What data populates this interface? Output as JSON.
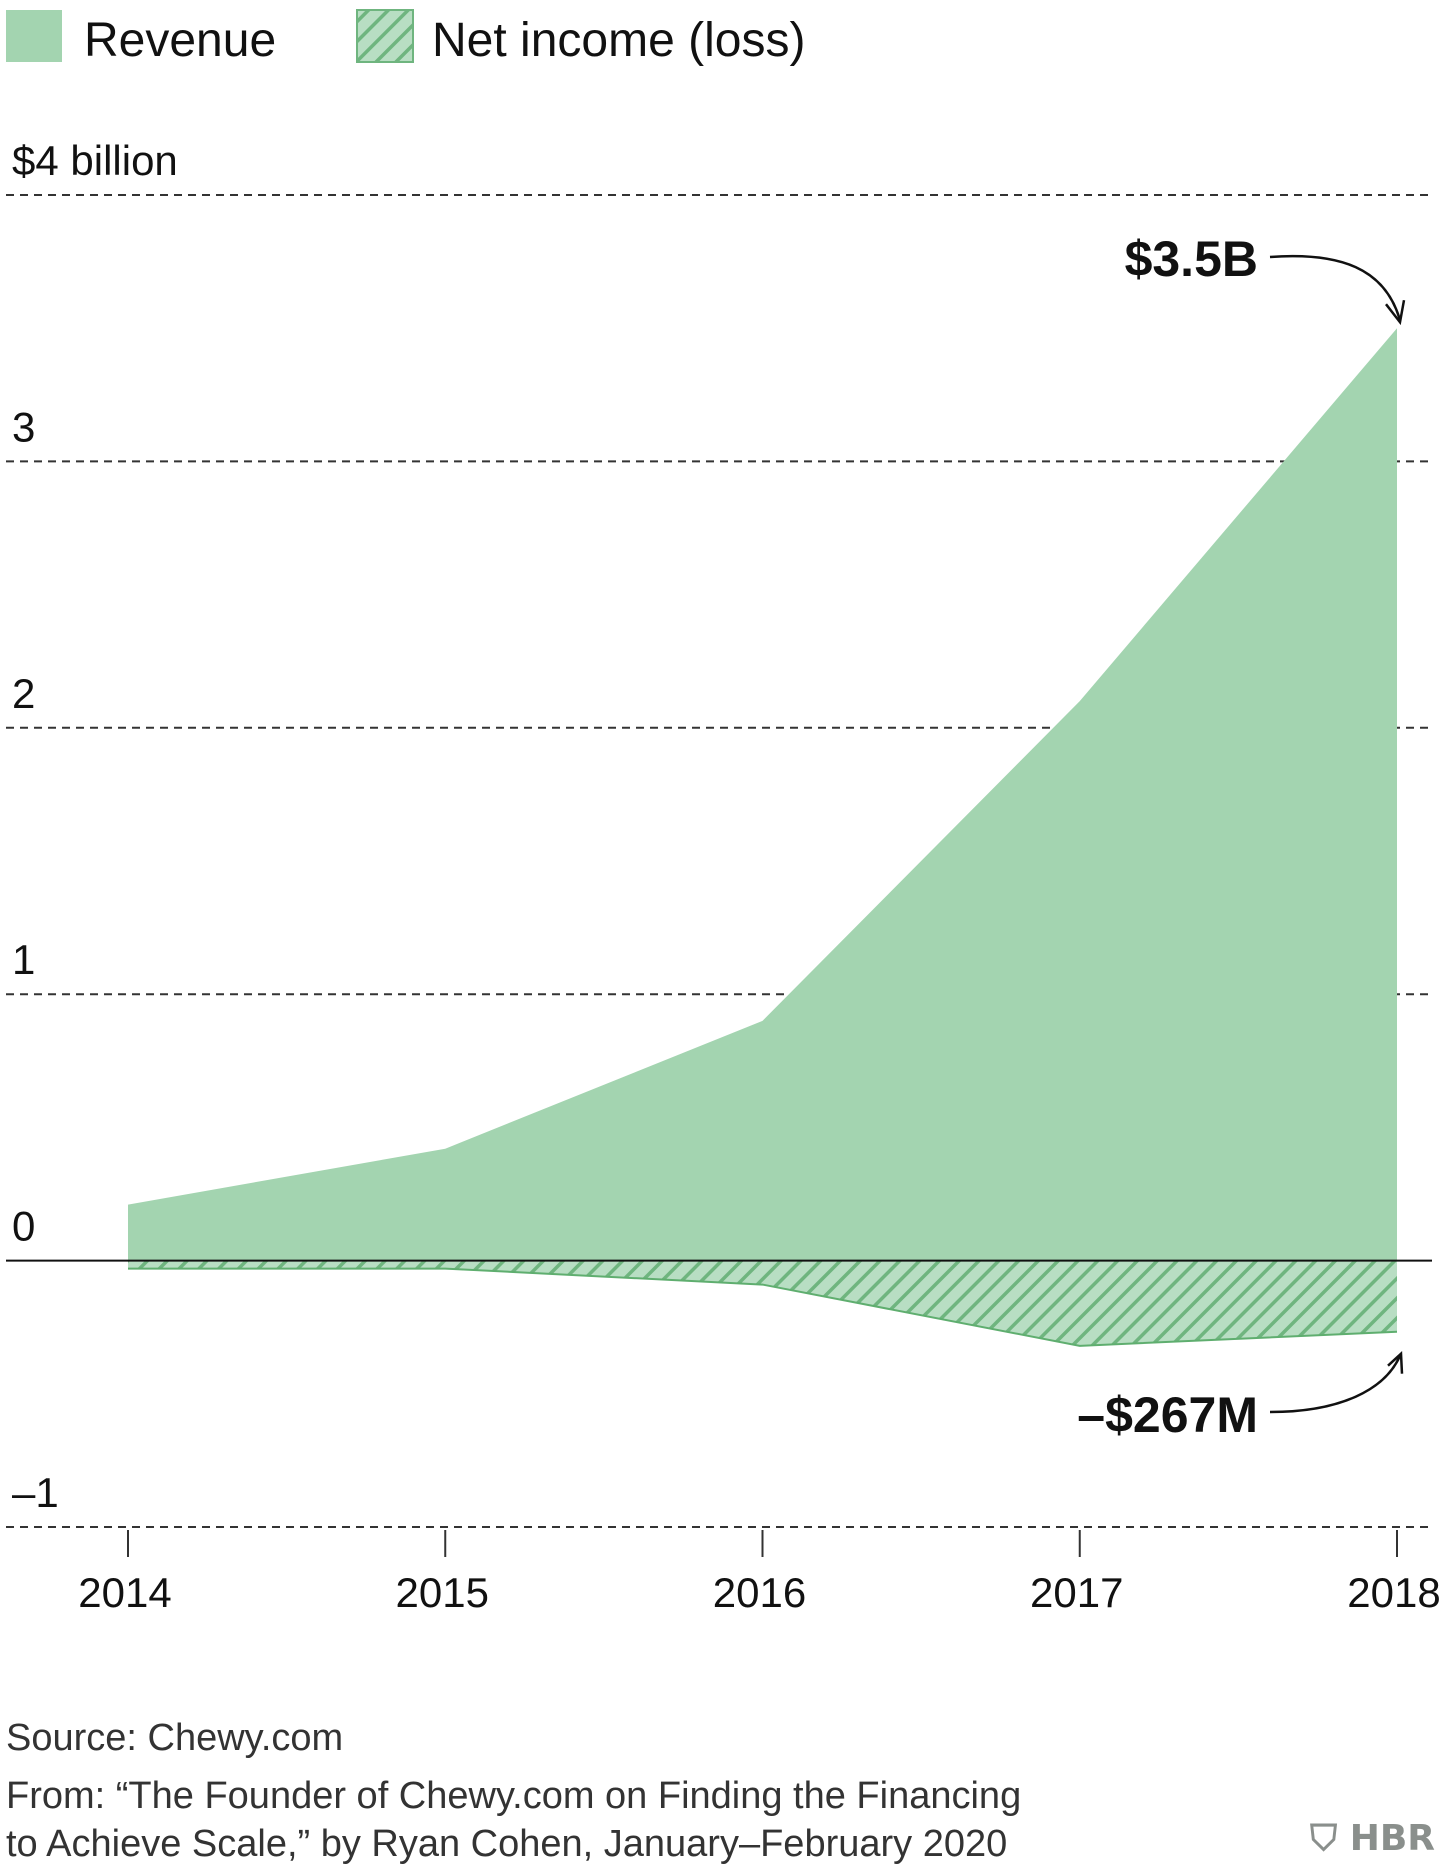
{
  "colors": {
    "revenue_fill": "#a3d4b0",
    "net_fill": "#b8deC3",
    "net_hatch": "#6fb57f",
    "net_stroke": "#5fae6f",
    "grid": "#333333",
    "zero_line": "#111111"
  },
  "chart_data": {
    "type": "area",
    "x": [
      2014,
      2015,
      2016,
      2017,
      2018
    ],
    "series": [
      {
        "name": "Revenue",
        "values": [
          0.21,
          0.42,
          0.9,
          2.1,
          3.5
        ]
      },
      {
        "name": "Net income (loss)",
        "values": [
          -0.03,
          -0.03,
          -0.09,
          -0.32,
          -0.267
        ]
      }
    ],
    "ylim": [
      -1,
      4
    ],
    "yticks": [
      {
        "value": 4,
        "label": "$4 billion"
      },
      {
        "value": 3,
        "label": "3"
      },
      {
        "value": 2,
        "label": "2"
      },
      {
        "value": 1,
        "label": "1"
      },
      {
        "value": 0,
        "label": "0"
      },
      {
        "value": -1,
        "label": "–1"
      }
    ],
    "xtick_labels": [
      "2014",
      "2015",
      "2016",
      "2017",
      "2018"
    ],
    "grid": true,
    "legend_position": "top-left",
    "annotations": [
      {
        "label": "$3.5B",
        "x": 2018,
        "y": 3.5
      },
      {
        "label": "–$267M",
        "x": 2018,
        "y": -0.267
      }
    ]
  },
  "footer": {
    "source": "Source: Chewy.com",
    "from_line1": "From: “The Founder of Chewy.com on Finding the Financing",
    "from_line2": "to Achieve Scale,” by Ryan Cohen, January–February 2020",
    "logo": "HBR"
  }
}
